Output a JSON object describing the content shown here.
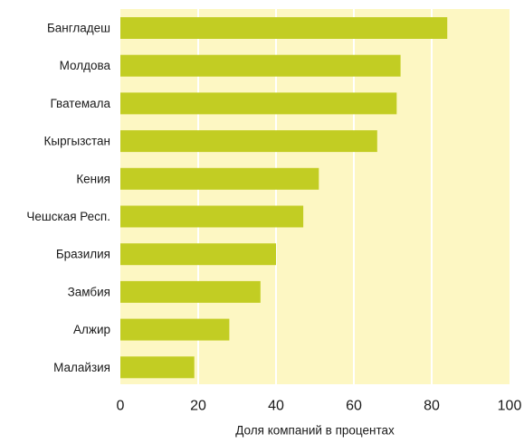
{
  "chart_data": {
    "type": "bar",
    "orientation": "horizontal",
    "categories": [
      "Бангладеш",
      "Молдова",
      "Гватемала",
      "Кыргызстан",
      "Кения",
      "Чешская Респ.",
      "Бразилия",
      "Замбия",
      "Алжир",
      "Малайзия"
    ],
    "values": [
      84,
      72,
      71,
      66,
      51,
      47,
      40,
      36,
      28,
      19
    ],
    "xlim": [
      0,
      100
    ],
    "xticks": [
      0,
      20,
      40,
      60,
      80,
      100
    ],
    "xlabel": "Доля компаний в процентах",
    "ylabel": "",
    "title": "",
    "grid": "vertical",
    "colors": {
      "bar": "#c2cd23",
      "plot_background": "#fdf7c3",
      "grid": "#ffffff",
      "text": "#1a1a1a"
    }
  }
}
